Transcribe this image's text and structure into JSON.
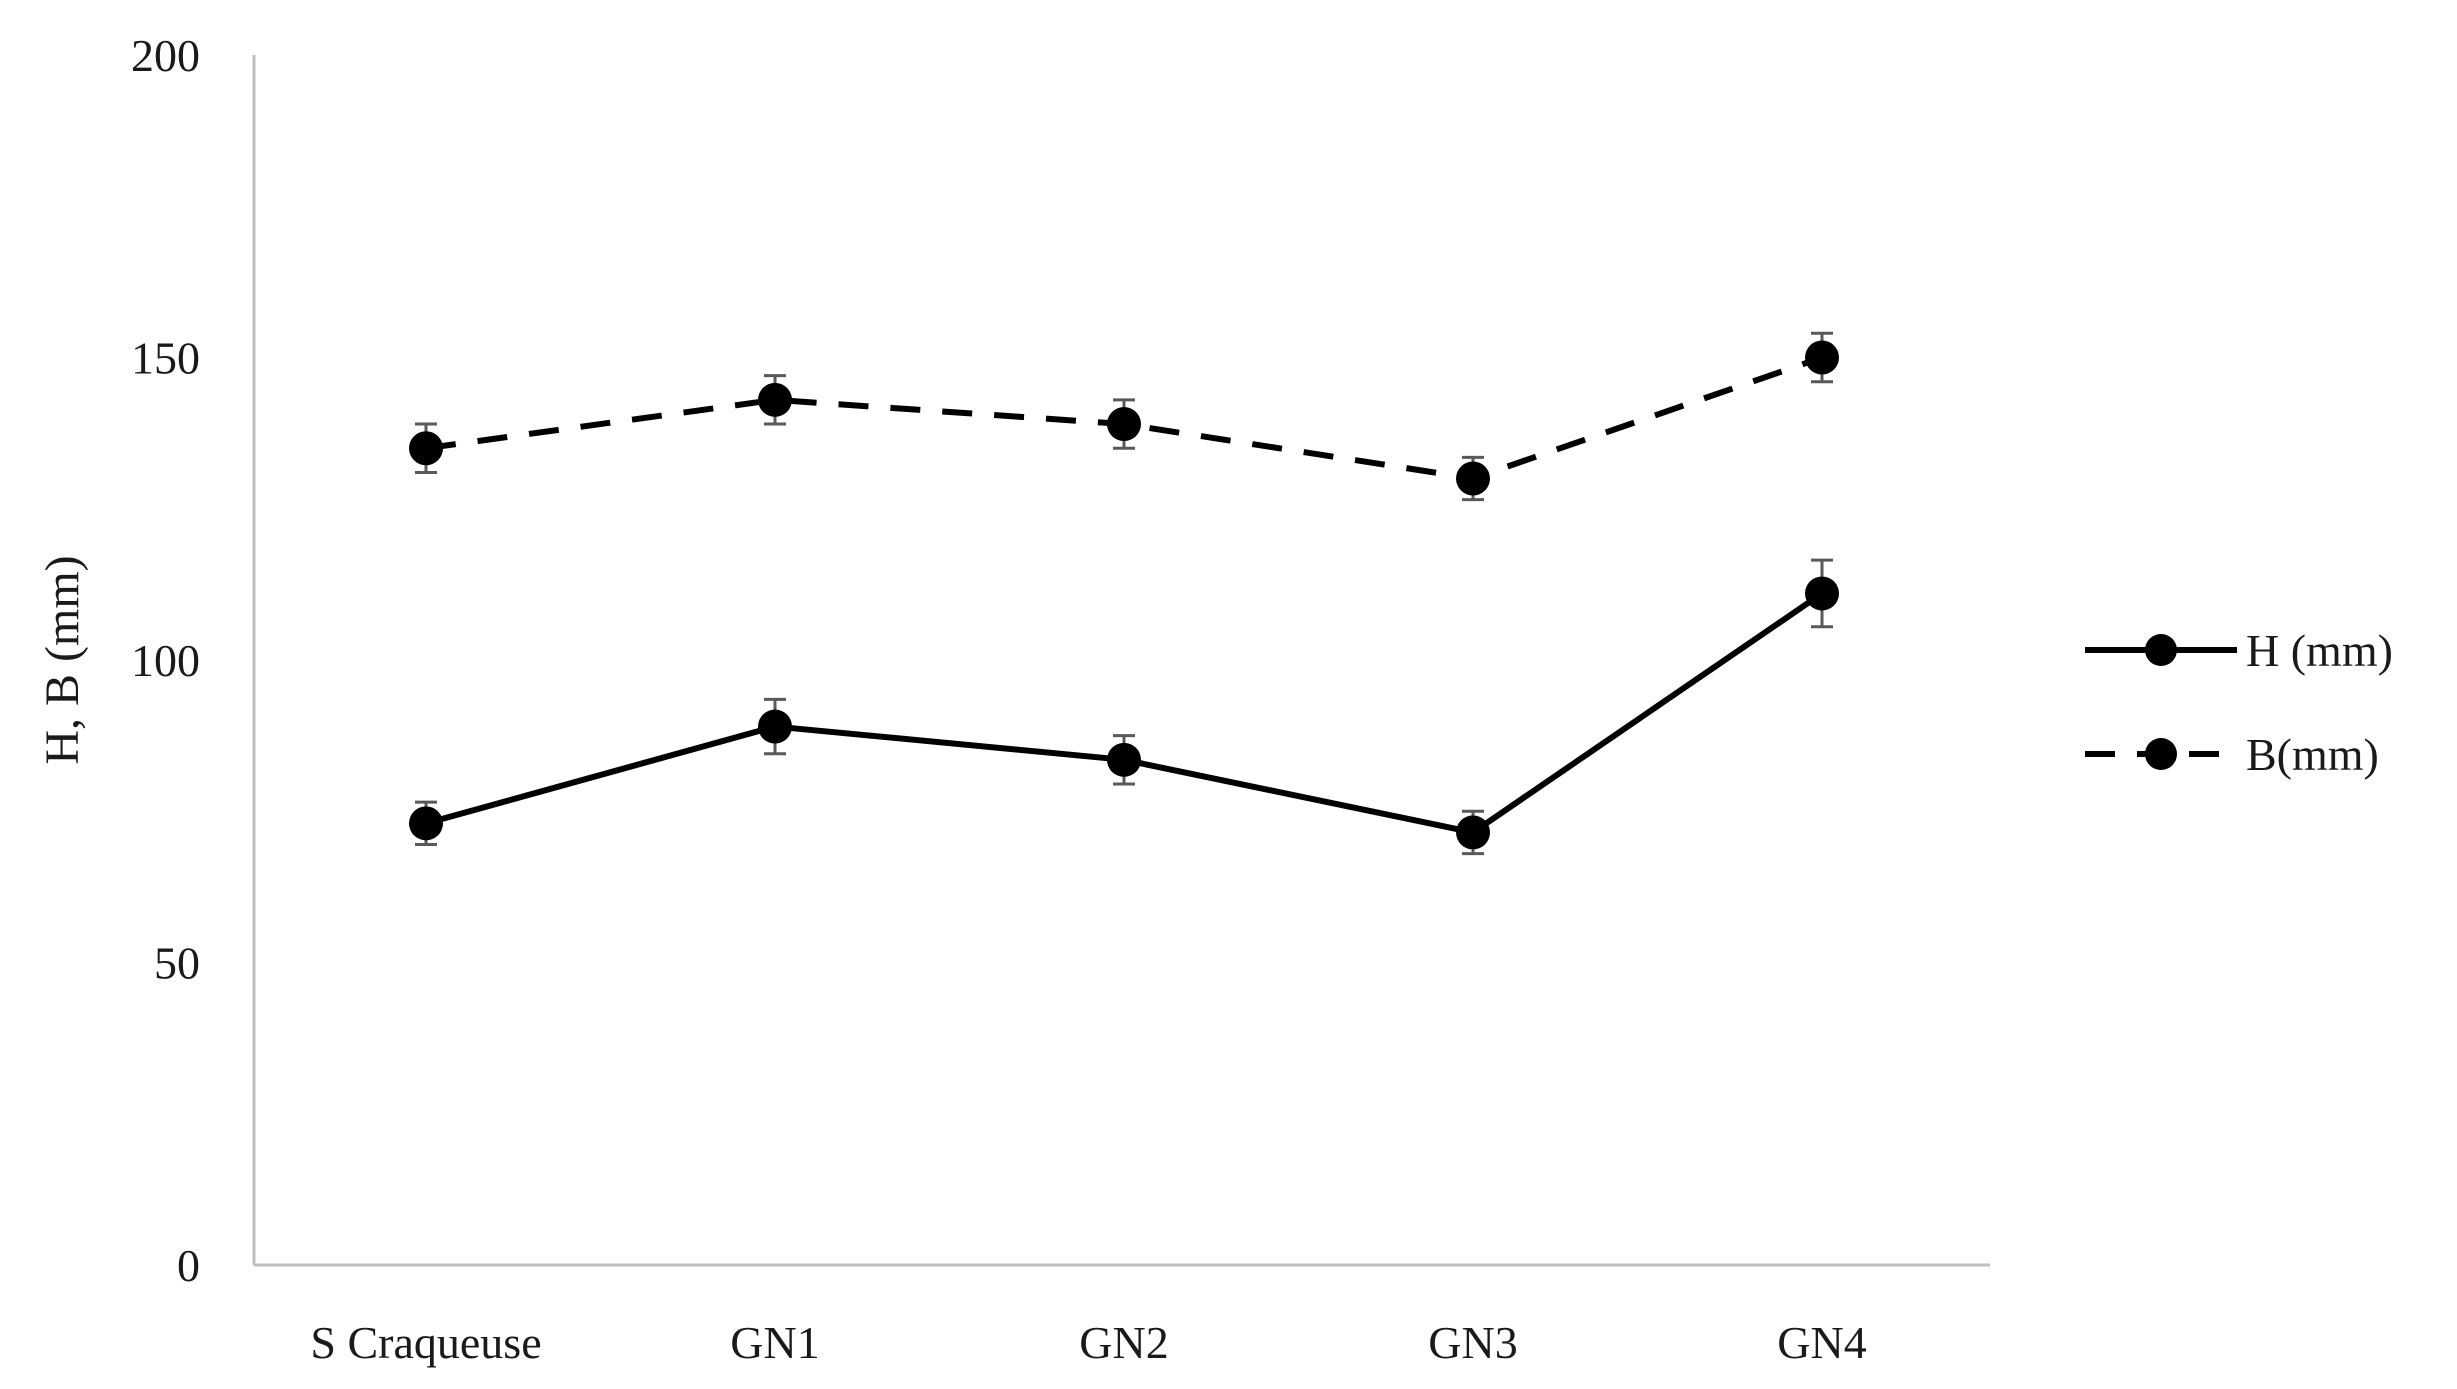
{
  "chart_data": {
    "type": "line",
    "title": "",
    "xlabel": "",
    "ylabel": "H, B (mm)",
    "ylim": [
      0,
      200
    ],
    "yticks": [
      0,
      50,
      100,
      150,
      200
    ],
    "grid": false,
    "legend_position": "right",
    "categories": [
      "S Craqueuse",
      "GN1",
      "GN2",
      "GN3",
      "GN4"
    ],
    "series": [
      {
        "name": "H (mm)",
        "style": "solid",
        "marker": "circle",
        "color": "#000000",
        "values": [
          73,
          89,
          83.5,
          71.5,
          111
        ],
        "errors": [
          3.5,
          4.5,
          4,
          3.5,
          5.5
        ]
      },
      {
        "name": "B(mm)",
        "style": "dashed",
        "marker": "circle",
        "color": "#000000",
        "values": [
          135,
          143,
          139,
          130,
          150
        ],
        "errors": [
          4,
          4,
          4,
          3.5,
          4
        ]
      }
    ]
  }
}
